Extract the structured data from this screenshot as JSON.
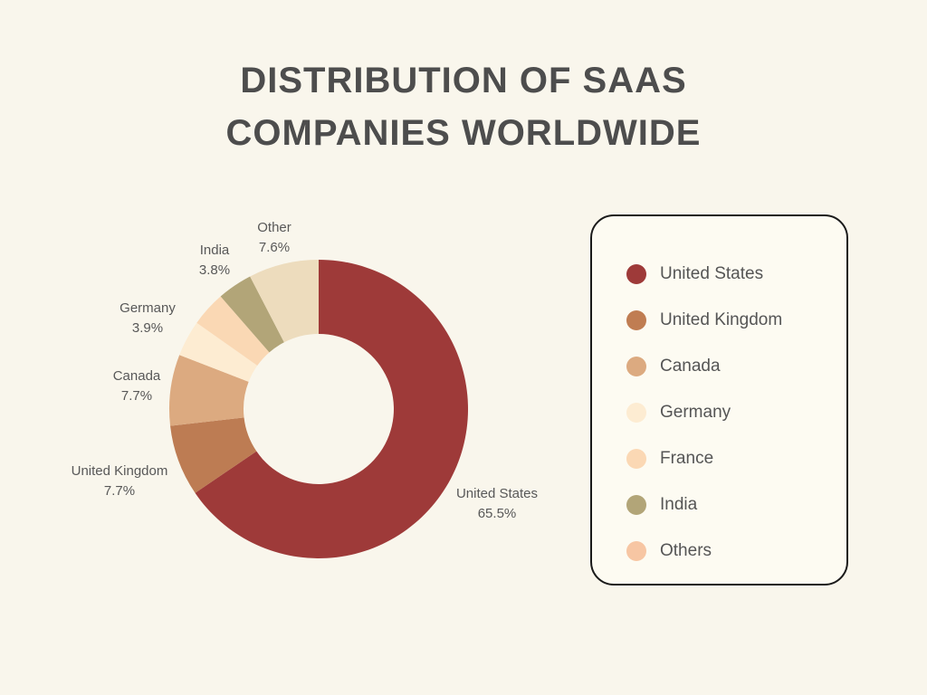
{
  "title": {
    "line1": "DISTRIBUTION OF SAAS",
    "line2": "COMPANIES WORLDWIDE"
  },
  "chart_data": {
    "type": "pie",
    "subtype": "donut",
    "title": "Distribution of SaaS Companies Worldwide",
    "units": "%",
    "start_angle_deg": 0,
    "direction": "clockwise",
    "slices": [
      {
        "label": "United States",
        "value": 65.5,
        "pct": "65.5%",
        "color": "#9e3a39"
      },
      {
        "label": "United Kingdom",
        "value": 7.7,
        "pct": "7.7%",
        "color": "#bd7c53"
      },
      {
        "label": "Canada",
        "value": 7.7,
        "pct": "7.7%",
        "color": "#dcaa80"
      },
      {
        "label": "Germany",
        "value": 3.9,
        "pct": "3.9%",
        "color": "#fdecd2"
      },
      {
        "label": "France",
        "value": 3.8,
        "pct": "3.8%",
        "color": "#fad8b4"
      },
      {
        "label": "India",
        "value": 3.8,
        "pct": "3.8%",
        "color": "#b2a578"
      },
      {
        "label": "Other",
        "value": 7.6,
        "pct": "7.6%",
        "color": "#eddcbd"
      }
    ]
  },
  "legend": {
    "items": [
      {
        "label": "United States",
        "color": "#9e3a39"
      },
      {
        "label": "United Kingdom",
        "color": "#c07d52"
      },
      {
        "label": "Canada",
        "color": "#dcaa80"
      },
      {
        "label": "Germany",
        "color": "#fdecd2"
      },
      {
        "label": "France",
        "color": "#fbd8b4"
      },
      {
        "label": "India",
        "color": "#b2a578"
      },
      {
        "label": "Others",
        "color": "#f7c6a3"
      }
    ]
  },
  "colors": {
    "background": "#f9f6ec",
    "legend_background": "#fdfbf2",
    "legend_border": "#1a1a1a",
    "title_text": "#4d4d4d",
    "label_text": "#585858"
  }
}
